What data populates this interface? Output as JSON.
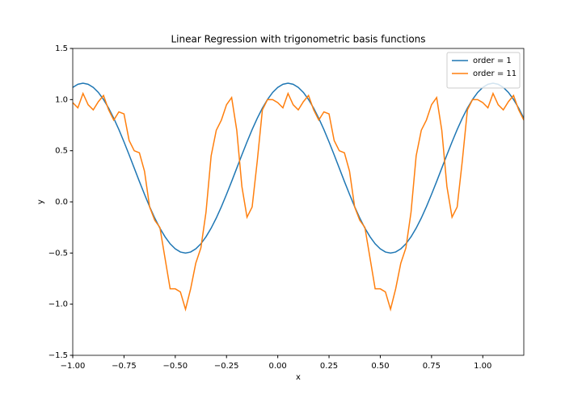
{
  "chart_data": {
    "type": "line",
    "title": "Linear Regression with trigonometric basis functions",
    "x_label": "x",
    "y_label": "y",
    "x": [
      -1,
      -0.975,
      -0.95,
      -0.925,
      -0.9,
      -0.875,
      -0.85,
      -0.825,
      -0.8,
      -0.775,
      -0.75,
      -0.725,
      -0.7,
      -0.675,
      -0.65,
      -0.625,
      -0.6,
      -0.575,
      -0.55,
      -0.525,
      -0.5,
      -0.475,
      -0.45,
      -0.425,
      -0.4,
      -0.375,
      -0.35,
      -0.325,
      -0.3,
      -0.275,
      -0.25,
      -0.225,
      -0.2,
      -0.175,
      -0.15,
      -0.125,
      -0.1,
      -0.075,
      -0.05,
      -0.025,
      0,
      0.025,
      0.05,
      0.075,
      0.1,
      0.125,
      0.15,
      0.175,
      0.2,
      0.225,
      0.25,
      0.275,
      0.3,
      0.325,
      0.35,
      0.375,
      0.4,
      0.425,
      0.45,
      0.475,
      0.5,
      0.525,
      0.55,
      0.575,
      0.6,
      0.625,
      0.65,
      0.675,
      0.7,
      0.725,
      0.75,
      0.775,
      0.8,
      0.825,
      0.85,
      0.875,
      0.9,
      0.925,
      0.95,
      0.975,
      1,
      1.025,
      1.05,
      1.075,
      1.1,
      1.125,
      1.15,
      1.175,
      1.2
    ],
    "series": [
      {
        "name": "order = 1",
        "color": "#1f77b4",
        "values": [
          1.119,
          1.15,
          1.16,
          1.15,
          1.119,
          1.07,
          1.001,
          0.917,
          0.818,
          0.707,
          0.586,
          0.46,
          0.33,
          0.2,
          0.074,
          -0.047,
          -0.158,
          -0.257,
          -0.341,
          -0.41,
          -0.459,
          -0.49,
          -0.5,
          -0.49,
          -0.459,
          -0.41,
          -0.341,
          -0.257,
          -0.158,
          -0.047,
          0.074,
          0.2,
          0.33,
          0.46,
          0.586,
          0.707,
          0.818,
          0.917,
          1.001,
          1.07,
          1.119,
          1.15,
          1.16,
          1.15,
          1.119,
          1.07,
          1.001,
          0.917,
          0.818,
          0.707,
          0.586,
          0.46,
          0.33,
          0.2,
          0.074,
          -0.047,
          -0.158,
          -0.257,
          -0.341,
          -0.41,
          -0.459,
          -0.49,
          -0.5,
          -0.49,
          -0.459,
          -0.41,
          -0.341,
          -0.257,
          -0.158,
          -0.047,
          0.074,
          0.2,
          0.33,
          0.46,
          0.586,
          0.707,
          0.818,
          0.917,
          1.001,
          1.07,
          1.119,
          1.15,
          1.16,
          1.15,
          1.119,
          1.07,
          1.001,
          0.917,
          0.818
        ]
      },
      {
        "name": "order = 11",
        "color": "#ff7f0e",
        "values": [
          0.97,
          0.92,
          1.06,
          0.95,
          0.9,
          0.98,
          1.04,
          0.9,
          0.8,
          0.88,
          0.86,
          0.6,
          0.5,
          0.48,
          0.3,
          -0.05,
          -0.18,
          -0.25,
          -0.55,
          -0.85,
          -0.85,
          -0.88,
          -1.05,
          -0.85,
          -0.6,
          -0.45,
          -0.1,
          0.45,
          0.7,
          0.8,
          0.95,
          1.02,
          0.7,
          0.15,
          -0.15,
          -0.05,
          0.4,
          0.9,
          1.0,
          1.0,
          0.97,
          0.92,
          1.06,
          0.95,
          0.9,
          0.98,
          1.04,
          0.9,
          0.8,
          0.88,
          0.86,
          0.6,
          0.5,
          0.48,
          0.3,
          -0.05,
          -0.18,
          -0.25,
          -0.55,
          -0.85,
          -0.85,
          -0.88,
          -1.05,
          -0.85,
          -0.6,
          -0.45,
          -0.1,
          0.45,
          0.7,
          0.8,
          0.95,
          1.02,
          0.7,
          0.15,
          -0.15,
          -0.05,
          0.4,
          0.9,
          1.0,
          1.0,
          0.97,
          0.92,
          1.06,
          0.95,
          0.9,
          0.98,
          1.04,
          0.9,
          0.8
        ]
      }
    ],
    "xlim": [
      -1,
      1.2
    ],
    "xticks": [
      {
        "value": -1,
        "label": "−1.00"
      },
      {
        "value": -0.75,
        "label": "−0.75"
      },
      {
        "value": -0.5,
        "label": "−0.50"
      },
      {
        "value": -0.25,
        "label": "−0.25"
      },
      {
        "value": 0,
        "label": "0.00"
      },
      {
        "value": 0.25,
        "label": "0.25"
      },
      {
        "value": 0.5,
        "label": "0.50"
      },
      {
        "value": 0.75,
        "label": "0.75"
      },
      {
        "value": 1,
        "label": "1.00"
      }
    ],
    "ylim": [
      -1.5,
      1.5
    ],
    "yticks": [
      {
        "value": -1.5,
        "label": "−1.5"
      },
      {
        "value": -1,
        "label": "−1.0"
      },
      {
        "value": -0.5,
        "label": "−0.5"
      },
      {
        "value": 0,
        "label": "0.0"
      },
      0.5,
      {
        "value": 1,
        "label": "1.0"
      },
      1.5
    ],
    "grid": false,
    "legend": "upper right"
  }
}
